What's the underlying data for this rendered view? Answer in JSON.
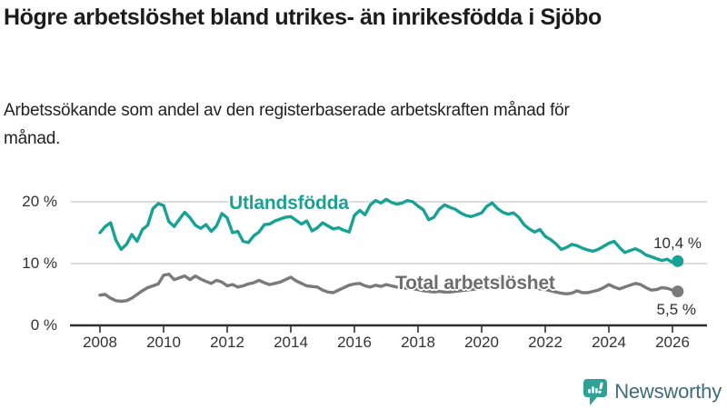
{
  "title": "Högre arbetslöshet bland utrikes- än inrikesfödda i Sjöbo",
  "subtitle": "Arbetssökande som andel av den registerbaserade arbetskraften månad för månad.",
  "branding": {
    "logo_text": "Newsworthy",
    "icon": "newsworthy-chart-bubble-icon",
    "icon_color": "#2FA197",
    "text_color": "#406b7c"
  },
  "colors": {
    "title": "#1c1c1c",
    "subtitle": "#222222",
    "axis": "#2f2f2f",
    "grid": "#d0d0d0",
    "tick_labels": "#333333",
    "value_labels": "#2e2e2e"
  },
  "chart_data": {
    "type": "line",
    "value_unit": "%",
    "frequency": "monthly",
    "x_start": 2008.0,
    "x_step_years": 0.1666667,
    "xlim": [
      2008,
      2026.4
    ],
    "ylim": [
      0,
      21.5
    ],
    "grid": "horizontal",
    "y_tick_values": [
      20,
      10,
      0
    ],
    "y_tick_labels": [
      "20 %",
      "10 %",
      "0 %"
    ],
    "x_ticks": [
      2008,
      2010,
      2012,
      2014,
      2016,
      2018,
      2020,
      2022,
      2024,
      2026
    ],
    "series": [
      {
        "id": "utlandsfodda",
        "name": "Utlandsfödda",
        "color": "#17A295",
        "label_color": "#17A295",
        "end_label": "10,4 %",
        "end_value": 10.4,
        "values": [
          15.0,
          16.0,
          16.6,
          13.8,
          12.3,
          13.1,
          14.7,
          13.6,
          15.5,
          16.2,
          18.9,
          19.7,
          19.4,
          16.8,
          16.0,
          17.2,
          18.3,
          17.4,
          16.2,
          15.7,
          16.3,
          15.2,
          16.1,
          18.1,
          17.4,
          15.0,
          15.2,
          13.6,
          13.4,
          14.5,
          15.1,
          16.3,
          16.4,
          16.9,
          17.2,
          17.5,
          17.6,
          17.0,
          16.4,
          16.9,
          15.3,
          15.8,
          16.6,
          16.1,
          15.6,
          15.8,
          15.4,
          15.1,
          17.8,
          18.6,
          17.9,
          19.5,
          20.2,
          19.8,
          20.4,
          19.9,
          19.6,
          19.8,
          20.2,
          20.0,
          19.3,
          18.7,
          17.1,
          17.5,
          18.8,
          19.5,
          19.1,
          18.8,
          18.2,
          17.8,
          17.6,
          17.9,
          18.2,
          19.3,
          19.8,
          18.9,
          18.3,
          18.0,
          18.2,
          17.5,
          16.3,
          15.6,
          15.1,
          15.5,
          14.4,
          13.9,
          13.2,
          12.3,
          12.6,
          13.1,
          12.9,
          12.5,
          12.2,
          12.0,
          12.3,
          12.8,
          13.3,
          13.6,
          12.6,
          11.8,
          12.1,
          12.4,
          12.0,
          11.4,
          11.1,
          10.8,
          10.5,
          10.7,
          10.2,
          10.4
        ]
      },
      {
        "id": "total",
        "name": "Total arbetslöshet",
        "color": "#7A7A7A",
        "label_color": "#6D6D6D",
        "end_label": "5,5 %",
        "end_value": 5.5,
        "values": [
          4.9,
          5.0,
          4.4,
          4.0,
          3.9,
          4.0,
          4.4,
          5.0,
          5.6,
          6.1,
          6.4,
          6.7,
          8.1,
          8.3,
          7.4,
          7.7,
          8.0,
          7.4,
          8.0,
          7.5,
          7.1,
          6.8,
          7.3,
          7.0,
          6.4,
          6.6,
          6.2,
          6.4,
          6.7,
          6.9,
          7.3,
          6.9,
          6.6,
          6.8,
          7.0,
          7.4,
          7.8,
          7.2,
          6.8,
          6.4,
          6.3,
          6.2,
          5.7,
          5.4,
          5.3,
          5.7,
          6.1,
          6.5,
          6.7,
          6.8,
          6.4,
          6.2,
          6.5,
          6.3,
          6.6,
          6.4,
          6.2,
          6.1,
          6.0,
          5.9,
          5.8,
          5.6,
          5.5,
          5.4,
          5.5,
          5.4,
          5.4,
          5.5,
          5.6,
          5.7,
          5.8,
          5.9,
          6.0,
          6.6,
          7.3,
          7.5,
          7.4,
          7.2,
          7.0,
          6.8,
          6.6,
          6.3,
          6.1,
          5.9,
          5.8,
          5.6,
          5.4,
          5.2,
          5.1,
          5.2,
          5.6,
          5.3,
          5.3,
          5.5,
          5.7,
          6.1,
          6.6,
          6.2,
          5.9,
          6.2,
          6.5,
          6.8,
          6.6,
          6.1,
          5.7,
          5.8,
          6.1,
          6.0,
          5.7,
          5.5
        ]
      }
    ]
  }
}
